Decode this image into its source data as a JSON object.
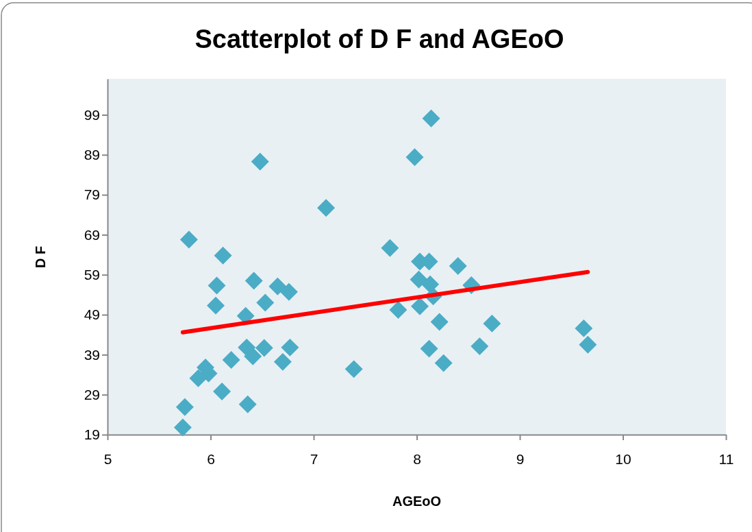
{
  "chart_data": {
    "type": "scatter",
    "title": "Scatterplot of D F and AGEoO",
    "xlabel": "AGEoO",
    "ylabel": "D F",
    "xlim": [
      5,
      11
    ],
    "xticks": [
      5,
      6,
      7,
      8,
      9,
      10,
      11
    ],
    "ylim": [
      19,
      108
    ],
    "yticks": [
      19,
      29,
      39,
      49,
      59,
      69,
      79,
      89,
      99
    ],
    "grid": false,
    "marker": "diamond",
    "series": [
      {
        "color": "#4bacc6",
        "x": [
          5.73,
          5.75,
          5.79,
          5.88,
          5.95,
          5.98,
          6.05,
          6.06,
          6.11,
          6.12,
          6.2,
          6.34,
          6.36,
          6.35,
          6.41,
          6.42,
          6.48,
          6.52,
          6.53,
          6.65,
          6.7,
          6.76,
          6.77,
          7.12,
          7.39,
          7.74,
          7.82,
          7.98,
          8.02,
          8.03,
          8.03,
          8.12,
          8.12,
          8.13,
          8.14,
          8.16,
          8.22,
          8.26,
          8.4,
          8.53,
          8.61,
          8.73,
          9.62,
          9.66
        ],
        "values": [
          20.8,
          25.9,
          67.8,
          33.1,
          35.8,
          34.3,
          51.3,
          56.3,
          29.8,
          63.8,
          37.7,
          48.7,
          26.6,
          40.8,
          38.6,
          57.5,
          87.3,
          40.7,
          52.0,
          56.1,
          37.2,
          54.7,
          40.8,
          75.7,
          35.4,
          65.7,
          50.2,
          88.4,
          57.8,
          62.3,
          51.1,
          62.3,
          40.5,
          56.6,
          98.1,
          53.6,
          47.2,
          36.9,
          61.2,
          56.4,
          41.1,
          46.8,
          45.6,
          41.5
        ]
      },
      {
        "type": "line",
        "color": "#ff0000",
        "marker": "none",
        "line_style": "solid",
        "x": [
          5.73,
          9.66
        ],
        "values": [
          44.6,
          59.7
        ]
      }
    ]
  }
}
